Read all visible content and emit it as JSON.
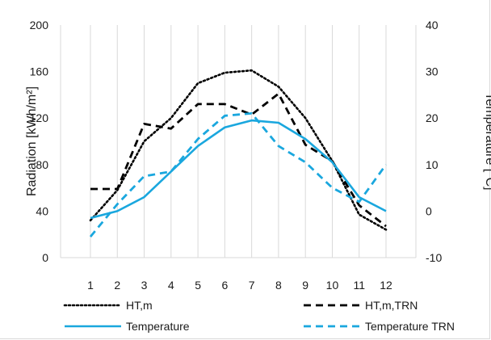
{
  "chart_data": {
    "type": "line",
    "title": "",
    "xlabel": "",
    "ylabel": "Radiation [kWh/m²]",
    "y2label": "Temperature [°C]",
    "x": [
      1,
      2,
      3,
      4,
      5,
      6,
      7,
      8,
      9,
      10,
      11,
      12
    ],
    "ylim": [
      0,
      200
    ],
    "yticks": [
      0,
      40,
      80,
      120,
      160,
      200
    ],
    "y2lim": [
      -10,
      40
    ],
    "y2ticks": [
      -10,
      0,
      10,
      20,
      30,
      40
    ],
    "grid": "vertical",
    "legend_position": "bottom",
    "series": [
      {
        "name": "HT,m",
        "axis": "left",
        "style": "dotted",
        "color": "#000000",
        "values": [
          32,
          58,
          100,
          120,
          150,
          159,
          161,
          147,
          120,
          83,
          37,
          24
        ]
      },
      {
        "name": "HT,m,TRN",
        "axis": "left",
        "style": "dashed",
        "color": "#000000",
        "values": [
          59,
          59,
          115,
          111,
          132,
          132,
          123,
          141,
          97,
          83,
          45,
          27
        ]
      },
      {
        "name": "Temperature",
        "axis": "right",
        "style": "solid",
        "color": "#1aa7de",
        "values": [
          -1.5,
          0,
          3,
          8.5,
          14,
          18,
          19.5,
          19,
          15.5,
          10.5,
          3,
          0
        ]
      },
      {
        "name": "Temperature TRN",
        "axis": "right",
        "style": "dashed",
        "color": "#1aa7de",
        "values": [
          -5.5,
          1.5,
          7.5,
          8.5,
          15.5,
          20.5,
          21,
          14,
          10.5,
          5,
          2,
          10
        ]
      }
    ]
  }
}
